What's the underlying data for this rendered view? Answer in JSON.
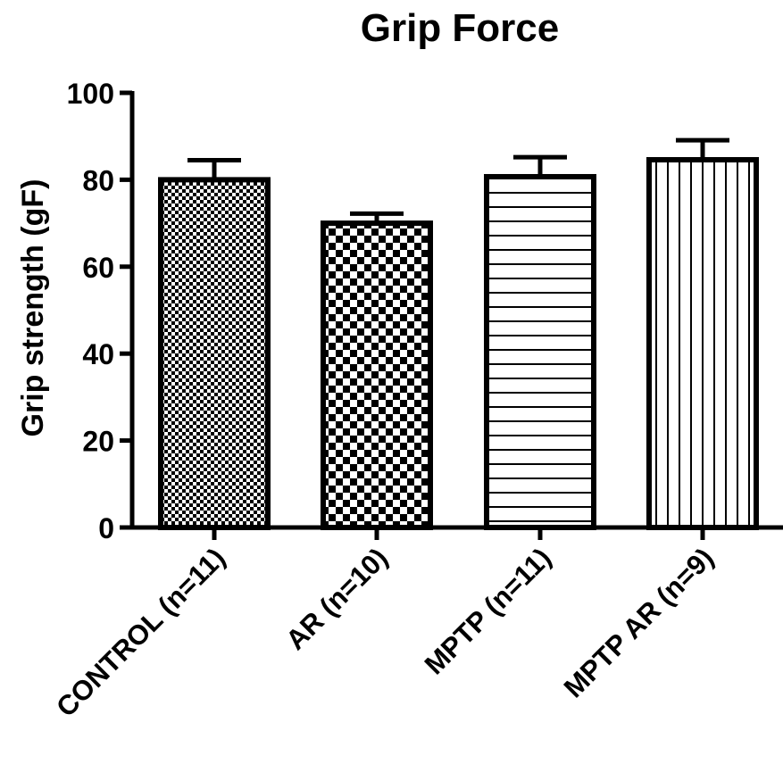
{
  "chart_data": {
    "type": "bar",
    "title": "Grip Force",
    "xlabel": "",
    "ylabel": "Grip strength (gF)",
    "ylim": [
      0,
      100
    ],
    "yticks": [
      0,
      20,
      40,
      60,
      80,
      100
    ],
    "grid": false,
    "legend": "none",
    "categories": [
      "CONTROL (n=11)",
      "AR (n=10)",
      "MPTP (n=11)",
      "MPTP AR (n=9)"
    ],
    "values": [
      80,
      70,
      80.7,
      84.6
    ],
    "error": [
      4.5,
      2.2,
      4.5,
      4.5
    ],
    "patterns": [
      "fine-checker",
      "coarse-checker",
      "horizontal-lines",
      "vertical-lines"
    ],
    "colors": {
      "bar_stroke": "#000000",
      "bar_fill": "#ffffff",
      "axis": "#000000"
    }
  }
}
